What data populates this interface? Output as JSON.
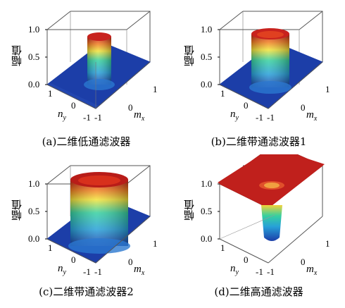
{
  "colors": {
    "base": "#1c3ea8",
    "low": "#2452c4",
    "mid": "#27c0b0",
    "high": "#f2d23a",
    "top": "#c0201c",
    "frame": "#555555"
  },
  "panels": [
    {
      "caption": "(a)二维低通滤波器",
      "ylabel": "幅值",
      "ticks_y": [
        "1.0",
        "0.5",
        "0.0"
      ],
      "ny_label": "n",
      "ny_sub": "y",
      "mx_label": "m",
      "mx_sub": "x",
      "t_ny1": "1",
      "t_ny0": "0",
      "t_m1": "-1",
      "t_n1": "-1",
      "t_mx0": "0",
      "t_mx1": "1"
    },
    {
      "caption": "(b)二维带通滤波器1",
      "ylabel": "幅值",
      "ticks_y": [
        "1.0",
        "0.5",
        "0.0"
      ],
      "ny_label": "n",
      "ny_sub": "y",
      "mx_label": "m",
      "mx_sub": "x",
      "t_ny1": "1",
      "t_ny0": "0",
      "t_m1": "-1",
      "t_n1": "-1",
      "t_mx0": "0",
      "t_mx1": "1"
    },
    {
      "caption": "(c)二维带通滤波器2",
      "ylabel": "幅值",
      "ticks_y": [
        "1.0",
        "0.5",
        "0.0"
      ],
      "ny_label": "n",
      "ny_sub": "y",
      "mx_label": "m",
      "mx_sub": "x",
      "t_ny1": "1",
      "t_ny0": "0",
      "t_m1": "-1",
      "t_n1": "-1",
      "t_mx0": "0",
      "t_mx1": "1"
    },
    {
      "caption": "(d)二维高通滤波器",
      "ylabel": "幅值",
      "ticks_y": [
        "1.0",
        "0.5",
        "0.0"
      ],
      "ny_label": "n",
      "ny_sub": "y",
      "mx_label": "m",
      "mx_sub": "x",
      "t_ny1": "1",
      "t_ny0": "0",
      "t_m1": "-1",
      "t_n1": "-1",
      "t_mx0": "0",
      "t_mx1": "1"
    }
  ]
}
